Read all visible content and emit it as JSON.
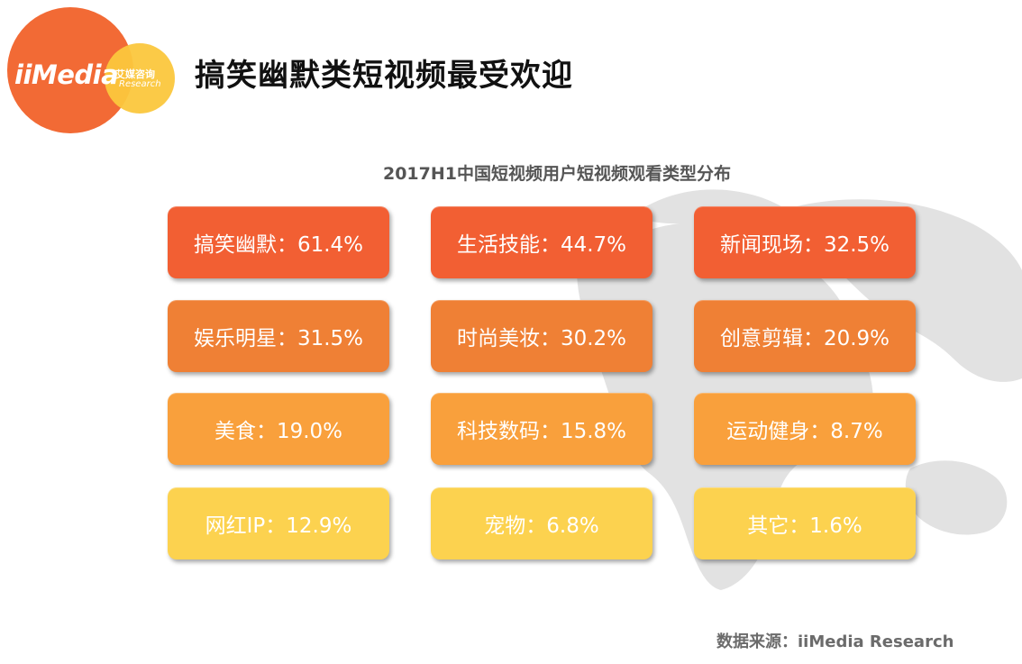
{
  "header": {
    "logo_word": "iiMedia",
    "logo_cn": "艾媒咨询",
    "logo_en": "Research",
    "title": "搞笑幽默类短视频最受欢迎"
  },
  "chart_data": {
    "type": "table",
    "title": "2017H1中国短视频用户短视频观看类型分布",
    "unit": "%",
    "categories": [
      "搞笑幽默",
      "生活技能",
      "新闻现场",
      "娱乐明星",
      "时尚美妆",
      "创意剪辑",
      "美食",
      "科技数码",
      "运动健身",
      "网红IP",
      "宠物",
      "其它"
    ],
    "values": [
      61.4,
      44.7,
      32.5,
      31.5,
      30.2,
      20.9,
      19.0,
      15.8,
      8.7,
      12.9,
      6.8,
      1.6
    ],
    "tile_labels": [
      "搞笑幽默：61.4%",
      "生活技能：44.7%",
      "新闻现场：32.5%",
      "娱乐明星：31.5%",
      "时尚美妆：30.2%",
      "创意剪辑：20.9%",
      "美食：19.0%",
      "科技数码：15.8%",
      "运动健身：8.7%",
      "网红IP：12.9%",
      "宠物：6.8%",
      "其它：1.6%"
    ],
    "row_colors": [
      "#f25f33",
      "#ef8035",
      "#f9a03c",
      "#fcd24f"
    ]
  },
  "footer": {
    "source": "数据来源：iiMedia Research"
  }
}
